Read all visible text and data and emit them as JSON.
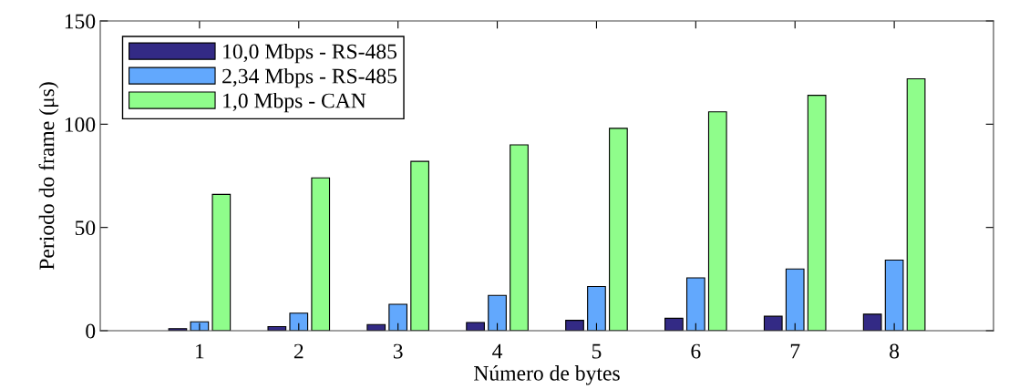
{
  "chart_data": {
    "type": "bar",
    "xlabel": "Número de bytes",
    "ylabel": "Periodo do frame (μs)",
    "categories": [
      "1",
      "2",
      "3",
      "4",
      "5",
      "6",
      "7",
      "8"
    ],
    "series": [
      {
        "name": "10,0 Mbps - RS-485",
        "color": "#332a85",
        "values": [
          1,
          2,
          3,
          4,
          5,
          6,
          7,
          8
        ]
      },
      {
        "name": "2,34 Mbps - RS-485",
        "color": "#62a8fd",
        "values": [
          4.3,
          8.5,
          12.8,
          17.1,
          21.4,
          25.6,
          29.9,
          34.2
        ]
      },
      {
        "name": "1,0 Mbps - CAN",
        "color": "#8ffd8b",
        "values": [
          66,
          74,
          82,
          90,
          98,
          106,
          114,
          122
        ]
      }
    ],
    "ylim": [
      0,
      150
    ],
    "yticks": [
      0,
      50,
      100,
      150
    ],
    "grid": false,
    "legend": "top left"
  }
}
